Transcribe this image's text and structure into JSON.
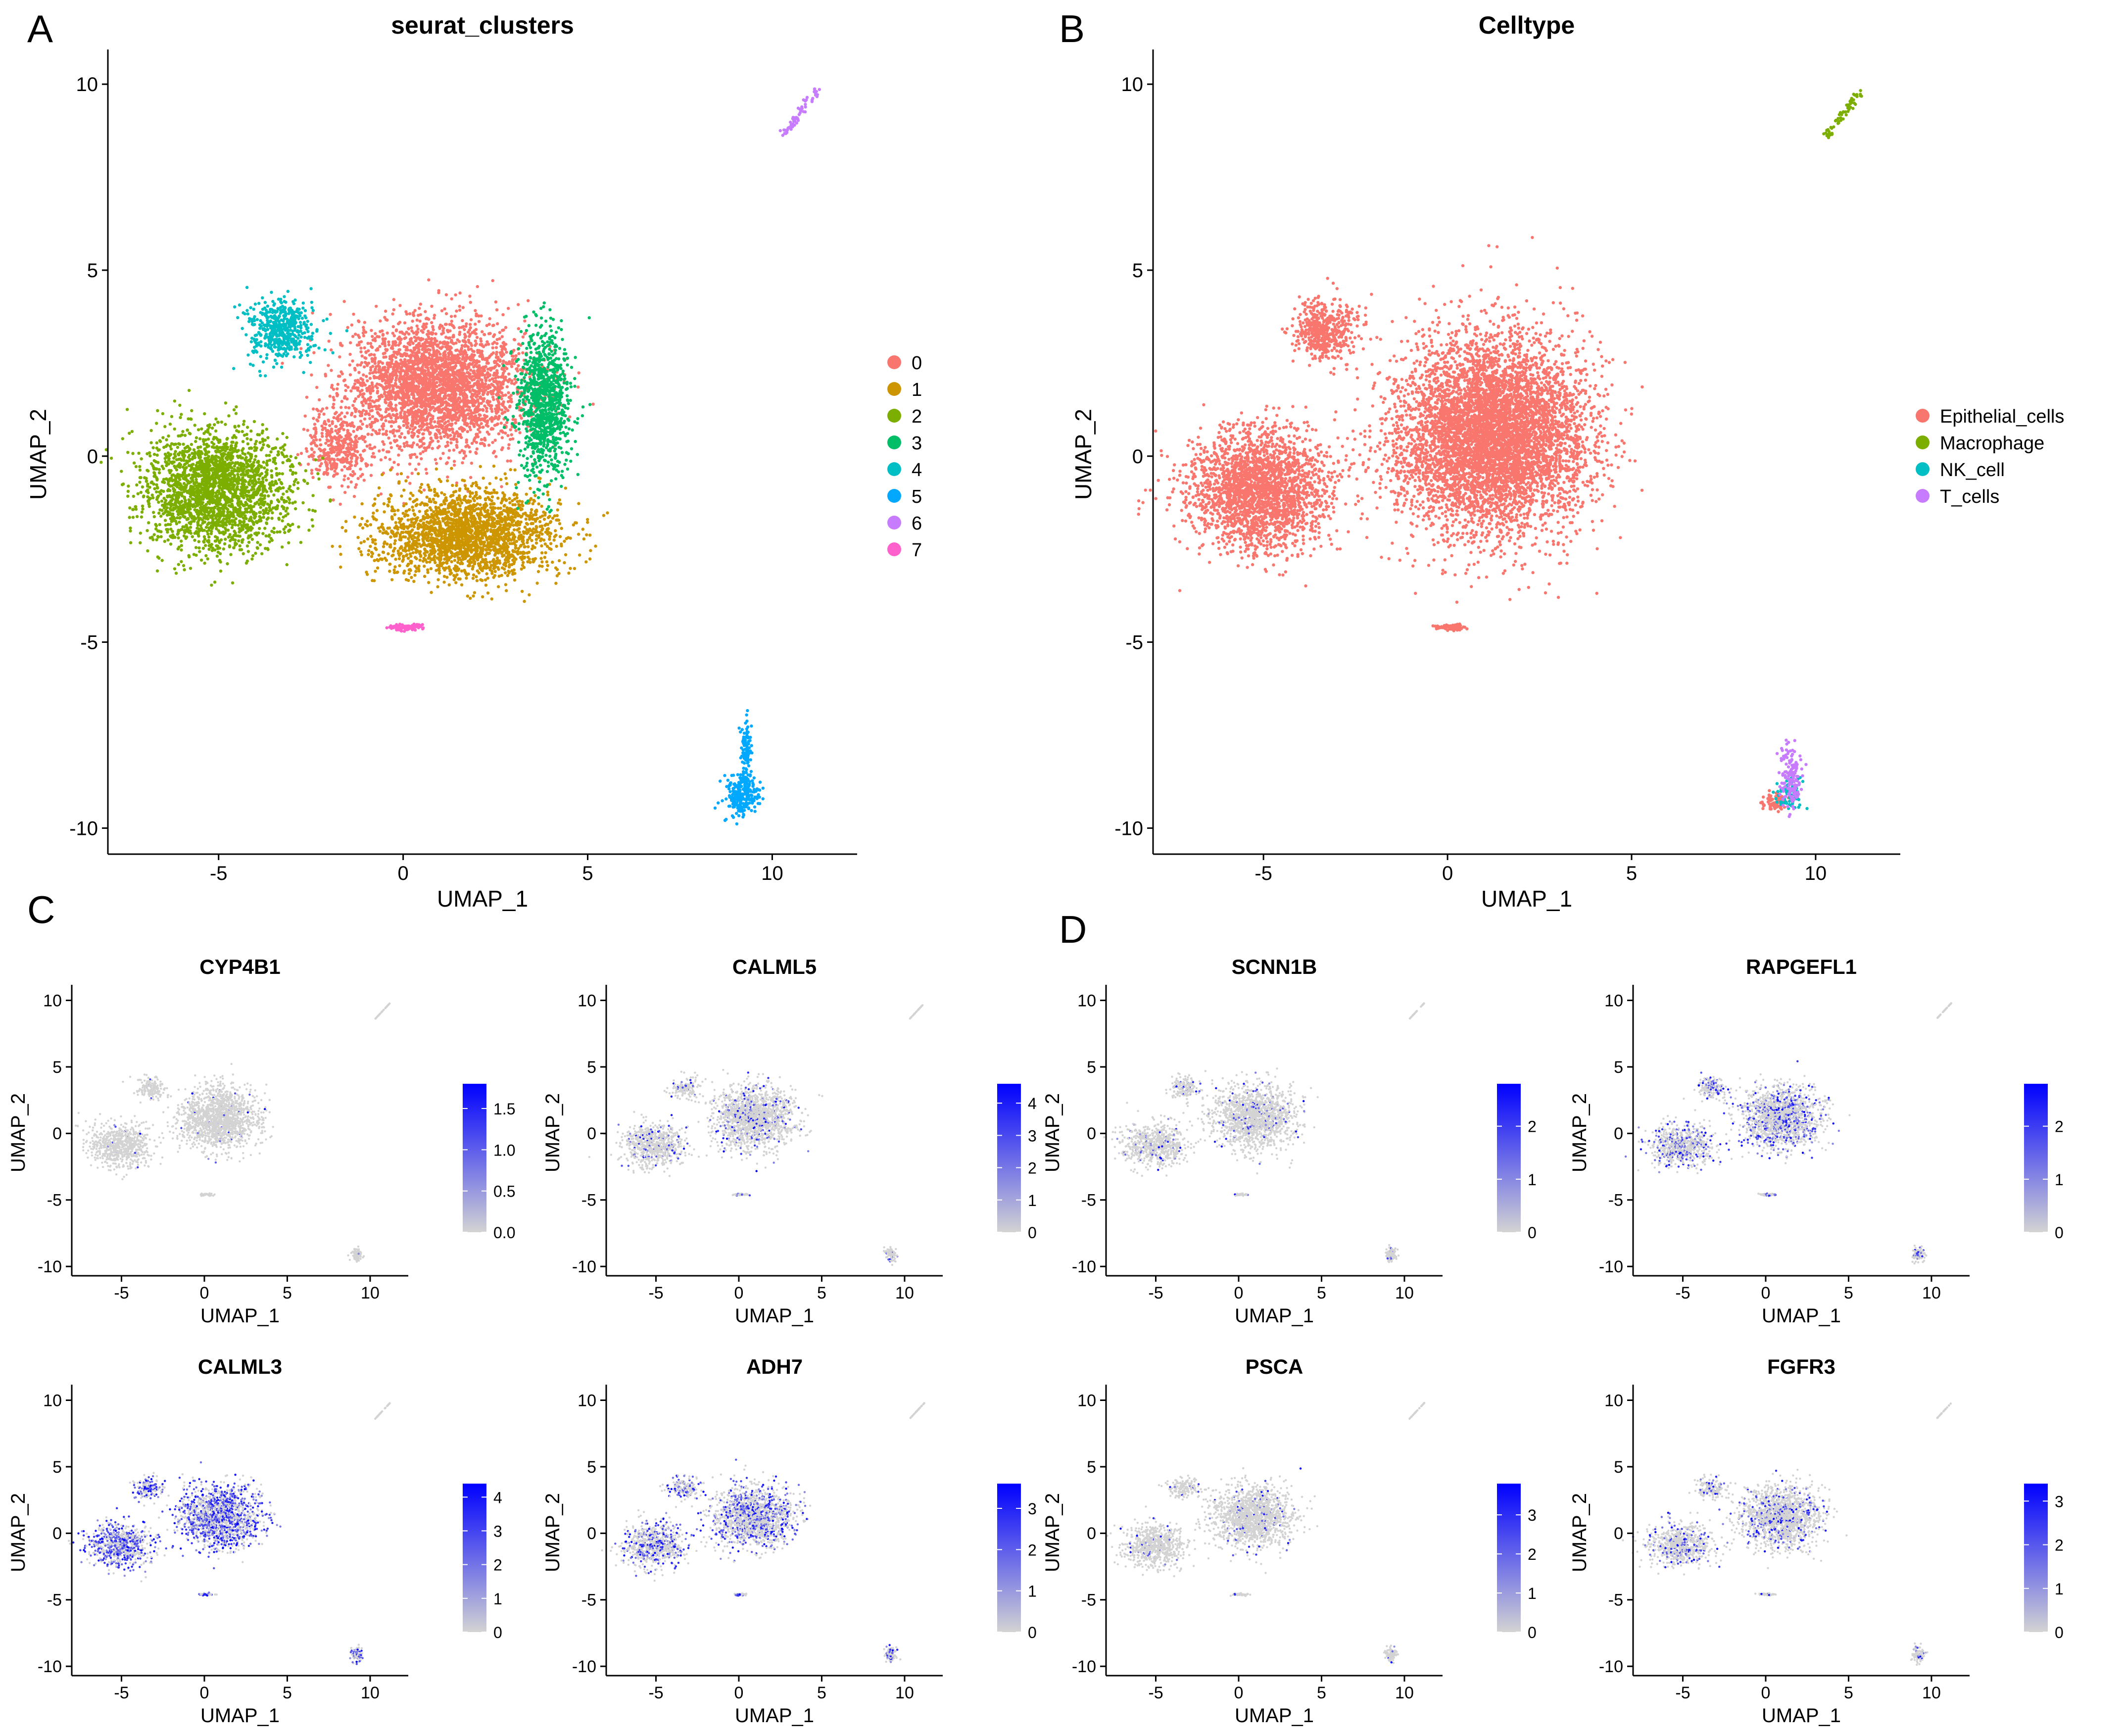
{
  "panel_letters": [
    "A",
    "B",
    "C",
    "D"
  ],
  "colors": {
    "cluster0": "#F8766D",
    "cluster1": "#CD9600",
    "cluster2": "#7CAE00",
    "cluster3": "#00BE67",
    "cluster4": "#00BFC4",
    "cluster5": "#00A9FF",
    "cluster6": "#C77CFF",
    "cluster7": "#FF61CC",
    "feature_low": "#D3D3D3",
    "feature_high": "#0000FF",
    "axis": "#000000"
  },
  "chart_data": [
    {
      "panel": "A",
      "type": "scatter",
      "title": "seurat_clusters",
      "xlabel": "UMAP_1",
      "ylabel": "UMAP_2",
      "xlim": [
        -8,
        12.3
      ],
      "ylim": [
        -10.7,
        10.8
      ],
      "xticks": [
        -5,
        0,
        5,
        10
      ],
      "yticks": [
        -10,
        -5,
        0,
        5,
        10
      ],
      "xtick_labels": [
        "-5",
        "0",
        "5",
        "10"
      ],
      "ytick_labels": [
        "-10",
        "-5",
        "0",
        "5",
        "10"
      ],
      "legend_position": "right",
      "legend": [
        "0",
        "1",
        "2",
        "3",
        "4",
        "5",
        "6",
        "7"
      ],
      "groups": [
        {
          "name": "0",
          "color": "#F8766D",
          "blobs": [
            [
              0.9,
              1.9,
              2.4,
              1.7,
              3200
            ],
            [
              -1.8,
              0.2,
              0.8,
              1.0,
              400
            ]
          ]
        },
        {
          "name": "1",
          "color": "#CD9600",
          "blobs": [
            [
              1.7,
              -2.1,
              2.4,
              1.2,
              2200
            ]
          ]
        },
        {
          "name": "2",
          "color": "#7CAE00",
          "blobs": [
            [
              -5.1,
              -0.9,
              1.9,
              1.6,
              2300
            ]
          ]
        },
        {
          "name": "3",
          "color": "#00BE67",
          "blobs": [
            [
              3.8,
              1.4,
              0.7,
              1.9,
              1000
            ]
          ]
        },
        {
          "name": "4",
          "color": "#00BFC4",
          "blobs": [
            [
              -3.3,
              3.4,
              0.9,
              0.8,
              500
            ]
          ]
        },
        {
          "name": "5",
          "color": "#00A9FF",
          "blobs": [
            [
              9.2,
              -9.1,
              0.45,
              0.55,
              260
            ],
            [
              9.3,
              -7.8,
              0.15,
              0.7,
              90
            ]
          ]
        },
        {
          "name": "6",
          "color": "#C77CFF",
          "line": [
            [
              10.3,
              8.6
            ],
            [
              11.2,
              9.8
            ],
            60
          ]
        },
        {
          "name": "7",
          "color": "#FF61CC",
          "blobs": [
            [
              0.1,
              -4.6,
              0.45,
              0.08,
              90
            ]
          ]
        }
      ]
    },
    {
      "panel": "B",
      "type": "scatter",
      "title": "Celltype",
      "xlabel": "UMAP_1",
      "ylabel": "UMAP_2",
      "xlim": [
        -8,
        12.3
      ],
      "ylim": [
        -10.7,
        10.8
      ],
      "xticks": [
        -5,
        0,
        5,
        10
      ],
      "yticks": [
        -10,
        -5,
        0,
        5,
        10
      ],
      "xtick_labels": [
        "-5",
        "0",
        "5",
        "10"
      ],
      "ytick_labels": [
        "-10",
        "-5",
        "0",
        "5",
        "10"
      ],
      "legend_position": "right",
      "legend": [
        "Epithelial_cells",
        "Macrophage",
        "NK_cell",
        "T_cells"
      ],
      "legend_colors": [
        "#F8766D",
        "#7CAE00",
        "#00BFC4",
        "#C77CFF"
      ],
      "groups": [
        {
          "name": "Epithelial_cells",
          "color": "#F8766D",
          "blobs": [
            [
              1.2,
              0.6,
              2.6,
              2.6,
              6000
            ],
            [
              -5.1,
              -0.9,
              1.9,
              1.6,
              2300
            ],
            [
              -3.3,
              3.4,
              0.9,
              0.8,
              500
            ],
            [
              0.1,
              -4.6,
              0.45,
              0.08,
              90
            ],
            [
              8.9,
              -9.3,
              0.35,
              0.25,
              90
            ]
          ]
        },
        {
          "name": "Macrophage",
          "color": "#7CAE00",
          "line": [
            [
              10.3,
              8.6
            ],
            [
              11.2,
              9.8
            ],
            60
          ]
        },
        {
          "name": "NK_cell",
          "color": "#00BFC4",
          "blobs": [
            [
              9.3,
              -9.0,
              0.35,
              0.5,
              80
            ]
          ]
        },
        {
          "name": "T_cells",
          "color": "#C77CFF",
          "blobs": [
            [
              9.3,
              -8.6,
              0.3,
              0.9,
              140
            ]
          ]
        }
      ]
    },
    {
      "panel": "C",
      "type": "scatter",
      "title": "CYP4B1",
      "xlabel": "UMAP_1",
      "ylabel": "UMAP_2",
      "xlim": [
        -8,
        12.3
      ],
      "ylim": [
        -10.7,
        10.8
      ],
      "xticks": [
        -5,
        0,
        5,
        10
      ],
      "yticks": [
        -10,
        -5,
        0,
        5,
        10
      ],
      "xtick_labels": [
        "-5",
        "0",
        "5",
        "10"
      ],
      "ytick_labels": [
        "-10",
        "-5",
        "0",
        "5",
        "10"
      ],
      "colorbar_ticks": [
        0.0,
        0.5,
        1.0,
        1.5
      ],
      "colorbar_labels": [
        "0.0",
        "0.5",
        "1.0",
        "1.5"
      ],
      "colorbar_max": 1.8,
      "expression": 0.02
    },
    {
      "panel": "C",
      "type": "scatter",
      "title": "CALML5",
      "xlabel": "UMAP_1",
      "ylabel": "UMAP_2",
      "xlim": [
        -8,
        12.3
      ],
      "ylim": [
        -10.7,
        10.8
      ],
      "xticks": [
        -5,
        0,
        5,
        10
      ],
      "yticks": [
        -10,
        -5,
        0,
        5,
        10
      ],
      "xtick_labels": [
        "-5",
        "0",
        "5",
        "10"
      ],
      "ytick_labels": [
        "-10",
        "-5",
        "0",
        "5",
        "10"
      ],
      "colorbar_ticks": [
        0,
        1,
        2,
        3,
        4
      ],
      "colorbar_labels": [
        "0",
        "1",
        "2",
        "3",
        "4"
      ],
      "colorbar_max": 4.6,
      "expression": 0.12
    },
    {
      "panel": "D",
      "type": "scatter",
      "title": "SCNN1B",
      "xlabel": "UMAP_1",
      "ylabel": "UMAP_2",
      "xlim": [
        -8,
        12.3
      ],
      "ylim": [
        -10.7,
        10.8
      ],
      "xticks": [
        -5,
        0,
        5,
        10
      ],
      "yticks": [
        -10,
        -5,
        0,
        5,
        10
      ],
      "xtick_labels": [
        "-5",
        "0",
        "5",
        "10"
      ],
      "ytick_labels": [
        "-10",
        "-5",
        "0",
        "5",
        "10"
      ],
      "colorbar_ticks": [
        0,
        1,
        2
      ],
      "colorbar_labels": [
        "0",
        "1",
        "2"
      ],
      "colorbar_max": 2.8,
      "expression": 0.08
    },
    {
      "panel": "D",
      "type": "scatter",
      "title": "RAPGEFL1",
      "xlabel": "UMAP_1",
      "ylabel": "UMAP_2",
      "xlim": [
        -8,
        12.3
      ],
      "ylim": [
        -10.7,
        10.8
      ],
      "xticks": [
        -5,
        0,
        5,
        10
      ],
      "yticks": [
        -10,
        -5,
        0,
        5,
        10
      ],
      "xtick_labels": [
        "-5",
        "0",
        "5",
        "10"
      ],
      "ytick_labels": [
        "-10",
        "-5",
        "0",
        "5",
        "10"
      ],
      "colorbar_ticks": [
        0,
        1,
        2
      ],
      "colorbar_labels": [
        "0",
        "1",
        "2"
      ],
      "colorbar_max": 2.8,
      "expression": 0.3
    },
    {
      "panel": "C",
      "type": "scatter",
      "title": "CALML3",
      "xlabel": "UMAP_1",
      "ylabel": "UMAP_2",
      "xlim": [
        -8,
        12.3
      ],
      "ylim": [
        -10.7,
        10.8
      ],
      "xticks": [
        -5,
        0,
        5,
        10
      ],
      "yticks": [
        -10,
        -5,
        0,
        5,
        10
      ],
      "xtick_labels": [
        "-5",
        "0",
        "5",
        "10"
      ],
      "ytick_labels": [
        "-10",
        "-5",
        "0",
        "5",
        "10"
      ],
      "colorbar_ticks": [
        0,
        1,
        2,
        3,
        4
      ],
      "colorbar_labels": [
        "0",
        "1",
        "2",
        "3",
        "4"
      ],
      "colorbar_max": 4.4,
      "expression": 0.55
    },
    {
      "panel": "C",
      "type": "scatter",
      "title": "ADH7",
      "xlabel": "UMAP_1",
      "ylabel": "UMAP_2",
      "xlim": [
        -8,
        12.3
      ],
      "ylim": [
        -10.7,
        10.8
      ],
      "xticks": [
        -5,
        0,
        5,
        10
      ],
      "yticks": [
        -10,
        -5,
        0,
        5,
        10
      ],
      "xtick_labels": [
        "-5",
        "0",
        "5",
        "10"
      ],
      "ytick_labels": [
        "-10",
        "-5",
        "0",
        "5",
        "10"
      ],
      "colorbar_ticks": [
        0,
        1,
        2,
        3
      ],
      "colorbar_labels": [
        "0",
        "1",
        "2",
        "3"
      ],
      "colorbar_max": 3.6,
      "expression": 0.35
    },
    {
      "panel": "D",
      "type": "scatter",
      "title": "PSCA",
      "xlabel": "UMAP_1",
      "ylabel": "UMAP_2",
      "xlim": [
        -8,
        12.3
      ],
      "ylim": [
        -10.7,
        10.8
      ],
      "xticks": [
        -5,
        0,
        5,
        10
      ],
      "yticks": [
        -10,
        -5,
        0,
        5,
        10
      ],
      "xtick_labels": [
        "-5",
        "0",
        "5",
        "10"
      ],
      "ytick_labels": [
        "-10",
        "-5",
        "0",
        "5",
        "10"
      ],
      "colorbar_ticks": [
        0,
        1,
        2,
        3
      ],
      "colorbar_labels": [
        "0",
        "1",
        "2",
        "3"
      ],
      "colorbar_max": 3.8,
      "expression": 0.06
    },
    {
      "panel": "D",
      "type": "scatter",
      "title": "FGFR3",
      "xlabel": "UMAP_1",
      "ylabel": "UMAP_2",
      "xlim": [
        -8,
        12.3
      ],
      "ylim": [
        -10.7,
        10.8
      ],
      "xticks": [
        -5,
        0,
        5,
        10
      ],
      "yticks": [
        -10,
        -5,
        0,
        5,
        10
      ],
      "xtick_labels": [
        "-5",
        "0",
        "5",
        "10"
      ],
      "ytick_labels": [
        "-10",
        "-5",
        "0",
        "5",
        "10"
      ],
      "colorbar_ticks": [
        0,
        1,
        2,
        3
      ],
      "colorbar_labels": [
        "0",
        "1",
        "2",
        "3"
      ],
      "colorbar_max": 3.4,
      "expression": 0.18
    }
  ]
}
